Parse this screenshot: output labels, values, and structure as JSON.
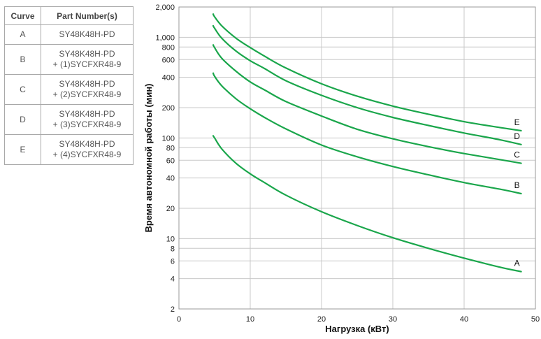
{
  "table": {
    "header_curve": "Curve",
    "header_part": "Part Number(s)",
    "rows": [
      {
        "curve": "A",
        "line1": "SY48K48H-PD",
        "line2": ""
      },
      {
        "curve": "B",
        "line1": "SY48K48H-PD",
        "line2": "+ (1)SYCFXR48-9"
      },
      {
        "curve": "C",
        "line1": "SY48K48H-PD",
        "line2": "+ (2)SYCFXR48-9"
      },
      {
        "curve": "D",
        "line1": "SY48K48H-PD",
        "line2": "+ (3)SYCFXR48-9"
      },
      {
        "curve": "E",
        "line1": "SY48K48H-PD",
        "line2": "+ (4)SYCFXR48-9"
      }
    ]
  },
  "chart_data": {
    "type": "line",
    "xlabel": "Нагрузка (кВт)",
    "ylabel": "Время автономной работы (мин)",
    "xlim": [
      0,
      50
    ],
    "ylim": [
      2,
      2000
    ],
    "yscale": "log",
    "grid": true,
    "line_color": "#1aa64b",
    "x_ticks": [
      {
        "value": 0,
        "label": "0"
      },
      {
        "value": 10,
        "label": "10"
      },
      {
        "value": 20,
        "label": "20"
      },
      {
        "value": 30,
        "label": "30"
      },
      {
        "value": 40,
        "label": "40"
      },
      {
        "value": 50,
        "label": "50"
      }
    ],
    "y_ticks": [
      {
        "value": 2,
        "label": "2"
      },
      {
        "value": 4,
        "label": "4"
      },
      {
        "value": 6,
        "label": "6"
      },
      {
        "value": 8,
        "label": "8"
      },
      {
        "value": 10,
        "label": "10"
      },
      {
        "value": 20,
        "label": "20"
      },
      {
        "value": 40,
        "label": "40"
      },
      {
        "value": 60,
        "label": "60"
      },
      {
        "value": 80,
        "label": "80"
      },
      {
        "value": 100,
        "label": "100"
      },
      {
        "value": 200,
        "label": "200"
      },
      {
        "value": 400,
        "label": "400"
      },
      {
        "value": 600,
        "label": "600"
      },
      {
        "value": 800,
        "label": "800"
      },
      {
        "value": 1000,
        "label": "1,000"
      },
      {
        "value": 2000,
        "label": "2,000"
      }
    ],
    "series": [
      {
        "name": "A",
        "x": [
          4.8,
          5,
          6,
          8,
          10,
          12,
          15,
          20,
          25,
          30,
          35,
          40,
          45,
          48
        ],
        "y": [
          105,
          100,
          78,
          56,
          44,
          36,
          27,
          18.5,
          13.5,
          10.2,
          8,
          6.4,
          5.2,
          4.7
        ]
      },
      {
        "name": "B",
        "x": [
          4.8,
          5,
          6,
          8,
          10,
          12,
          15,
          20,
          25,
          30,
          35,
          40,
          45,
          48
        ],
        "y": [
          440,
          410,
          330,
          245,
          195,
          160,
          123,
          85,
          65,
          52,
          43,
          36,
          31,
          28
        ]
      },
      {
        "name": "C",
        "x": [
          4.8,
          5,
          6,
          8,
          10,
          12,
          15,
          20,
          25,
          30,
          35,
          40,
          45,
          48
        ],
        "y": [
          840,
          790,
          620,
          460,
          360,
          300,
          230,
          165,
          122,
          98,
          82,
          70,
          61,
          56
        ]
      },
      {
        "name": "D",
        "x": [
          4.8,
          5,
          6,
          8,
          10,
          12,
          15,
          20,
          25,
          30,
          35,
          40,
          45,
          48
        ],
        "y": [
          1300,
          1230,
          980,
          730,
          585,
          490,
          370,
          265,
          200,
          160,
          133,
          112,
          96,
          86
        ]
      },
      {
        "name": "E",
        "x": [
          4.8,
          5,
          6,
          8,
          10,
          12,
          15,
          20,
          25,
          30,
          35,
          40,
          45,
          48
        ],
        "y": [
          1700,
          1600,
          1300,
          980,
          790,
          650,
          495,
          345,
          260,
          207,
          172,
          145,
          127,
          118
        ]
      }
    ]
  }
}
